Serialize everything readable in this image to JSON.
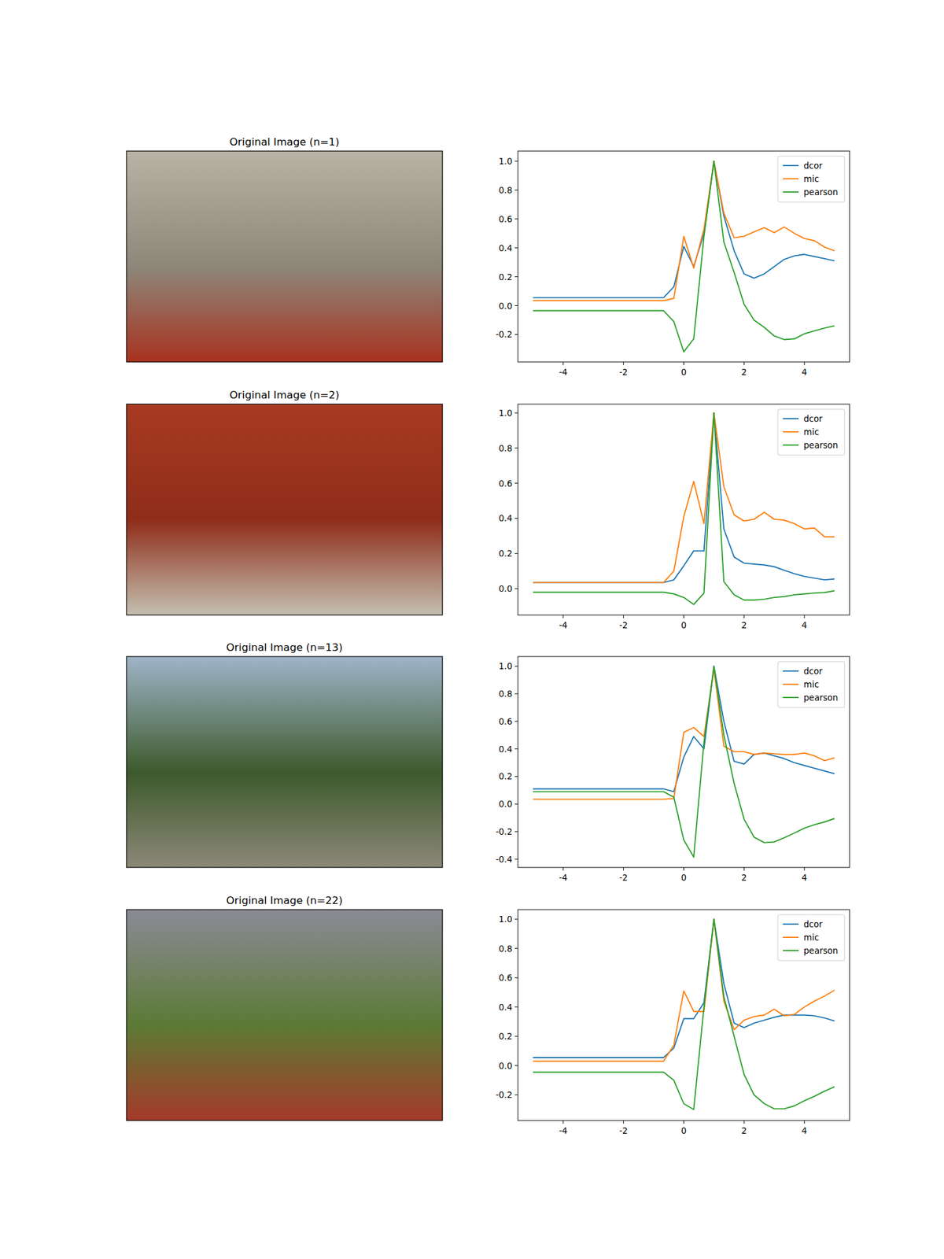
{
  "images": [
    {
      "title": "Original Image (n=1)"
    },
    {
      "title": "Original Image (n=2)"
    },
    {
      "title": "Original Image (n=13)"
    },
    {
      "title": "Original Image (n=22)"
    }
  ],
  "chart_data": [
    {
      "type": "line",
      "x": [
        -5,
        -0.67,
        -0.33,
        0,
        0.33,
        0.67,
        1,
        1.33,
        1.67,
        2,
        2.33,
        2.67,
        3,
        3.33,
        3.67,
        4,
        4.33,
        4.67,
        5
      ],
      "xlim": [
        -5.5,
        5.5
      ],
      "xticks": [
        -4,
        -2,
        0,
        2,
        4
      ],
      "ylim": [
        -0.39,
        1.07
      ],
      "yticks": [
        -0.2,
        {
          "value": 0,
          "label": "0.0"
        },
        0.2,
        0.4,
        0.6,
        0.8,
        {
          "value": 1,
          "label": "1.0"
        }
      ],
      "legend": "upper right",
      "series": [
        {
          "name": "dcor",
          "color": "#1f77b4",
          "values": [
            0.055,
            0.055,
            0.13,
            0.41,
            0.27,
            0.5,
            1.0,
            0.62,
            0.38,
            0.22,
            0.19,
            0.22,
            0.27,
            0.32,
            0.345,
            0.355,
            0.34,
            0.325,
            0.31
          ]
        },
        {
          "name": "mic",
          "color": "#ff7f0e",
          "values": [
            0.035,
            0.035,
            0.05,
            0.48,
            0.26,
            0.53,
            1.0,
            0.64,
            0.47,
            0.48,
            0.51,
            0.54,
            0.505,
            0.545,
            0.5,
            0.465,
            0.45,
            0.405,
            0.38
          ]
        },
        {
          "name": "pearson",
          "color": "#2ca02c",
          "values": [
            -0.035,
            -0.035,
            -0.11,
            -0.32,
            -0.23,
            0.48,
            1.0,
            0.44,
            0.23,
            0.01,
            -0.1,
            -0.15,
            -0.21,
            -0.235,
            -0.23,
            -0.195,
            -0.175,
            -0.155,
            -0.14
          ]
        }
      ]
    },
    {
      "type": "line",
      "x": [
        -5,
        -0.67,
        -0.33,
        0,
        0.33,
        0.67,
        1,
        1.33,
        1.67,
        2,
        2.33,
        2.67,
        3,
        3.33,
        3.67,
        4,
        4.33,
        4.67,
        5
      ],
      "xlim": [
        -5.5,
        5.5
      ],
      "xticks": [
        -4,
        -2,
        0,
        2,
        4
      ],
      "ylim": [
        -0.15,
        1.05
      ],
      "yticks": [
        {
          "value": 0,
          "label": "0.0"
        },
        0.2,
        0.4,
        0.6,
        0.8,
        {
          "value": 1,
          "label": "1.0"
        }
      ],
      "legend": "upper right",
      "series": [
        {
          "name": "dcor",
          "color": "#1f77b4",
          "values": [
            0.035,
            0.035,
            0.05,
            0.13,
            0.215,
            0.215,
            1.0,
            0.34,
            0.18,
            0.145,
            0.14,
            0.135,
            0.125,
            0.105,
            0.085,
            0.07,
            0.06,
            0.05,
            0.055
          ]
        },
        {
          "name": "mic",
          "color": "#ff7f0e",
          "values": [
            0.035,
            0.035,
            0.1,
            0.41,
            0.61,
            0.37,
            1.0,
            0.58,
            0.42,
            0.385,
            0.395,
            0.435,
            0.395,
            0.39,
            0.37,
            0.34,
            0.345,
            0.295,
            0.295
          ]
        },
        {
          "name": "pearson",
          "color": "#2ca02c",
          "values": [
            -0.02,
            -0.02,
            -0.03,
            -0.05,
            -0.09,
            -0.025,
            1.0,
            0.04,
            -0.035,
            -0.065,
            -0.065,
            -0.06,
            -0.05,
            -0.045,
            -0.035,
            -0.03,
            -0.025,
            -0.022,
            -0.012
          ]
        }
      ]
    },
    {
      "type": "line",
      "x": [
        -5,
        -0.67,
        -0.33,
        0,
        0.33,
        0.67,
        1,
        1.33,
        1.67,
        2,
        2.33,
        2.67,
        3,
        3.33,
        3.67,
        4,
        4.33,
        4.67,
        5
      ],
      "xlim": [
        -5.5,
        5.5
      ],
      "xticks": [
        -4,
        -2,
        0,
        2,
        4
      ],
      "ylim": [
        -0.46,
        1.07
      ],
      "yticks": [
        -0.4,
        -0.2,
        {
          "value": 0,
          "label": "0.0"
        },
        0.2,
        0.4,
        0.6,
        0.8,
        {
          "value": 1,
          "label": "1.0"
        }
      ],
      "legend": "upper right",
      "series": [
        {
          "name": "dcor",
          "color": "#1f77b4",
          "values": [
            0.11,
            0.11,
            0.09,
            0.34,
            0.49,
            0.4,
            1.0,
            0.6,
            0.31,
            0.29,
            0.36,
            0.37,
            0.35,
            0.33,
            0.3,
            0.28,
            0.26,
            0.24,
            0.22
          ]
        },
        {
          "name": "mic",
          "color": "#ff7f0e",
          "values": [
            0.035,
            0.035,
            0.04,
            0.52,
            0.555,
            0.49,
            0.98,
            0.42,
            0.38,
            0.38,
            0.36,
            0.37,
            0.365,
            0.36,
            0.36,
            0.37,
            0.35,
            0.315,
            0.335
          ]
        },
        {
          "name": "pearson",
          "color": "#2ca02c",
          "values": [
            0.09,
            0.09,
            0.05,
            -0.26,
            -0.385,
            0.45,
            1.0,
            0.5,
            0.15,
            -0.11,
            -0.24,
            -0.28,
            -0.275,
            -0.245,
            -0.21,
            -0.175,
            -0.15,
            -0.13,
            -0.105
          ]
        }
      ]
    },
    {
      "type": "line",
      "x": [
        -5,
        -0.67,
        -0.33,
        0,
        0.33,
        0.67,
        1,
        1.33,
        1.67,
        2,
        2.33,
        2.67,
        3,
        3.33,
        3.67,
        4,
        4.33,
        4.67,
        5
      ],
      "xlim": [
        -5.5,
        5.5
      ],
      "xticks": [
        -4,
        -2,
        0,
        2,
        4
      ],
      "ylim": [
        -0.375,
        1.065
      ],
      "yticks": [
        -0.2,
        {
          "value": 0,
          "label": "0.0"
        },
        0.2,
        0.4,
        0.6,
        0.8,
        {
          "value": 1,
          "label": "1.0"
        }
      ],
      "legend": "upper right",
      "series": [
        {
          "name": "dcor",
          "color": "#1f77b4",
          "values": [
            0.055,
            0.055,
            0.12,
            0.32,
            0.32,
            0.43,
            1.0,
            0.56,
            0.29,
            0.26,
            0.29,
            0.31,
            0.33,
            0.345,
            0.345,
            0.345,
            0.34,
            0.325,
            0.305
          ]
        },
        {
          "name": "mic",
          "color": "#ff7f0e",
          "values": [
            0.03,
            0.03,
            0.14,
            0.51,
            0.37,
            0.37,
            1.0,
            0.44,
            0.245,
            0.31,
            0.335,
            0.345,
            0.385,
            0.34,
            0.35,
            0.4,
            0.44,
            0.475,
            0.515
          ]
        },
        {
          "name": "pearson",
          "color": "#2ca02c",
          "values": [
            -0.045,
            -0.045,
            -0.1,
            -0.26,
            -0.3,
            0.4,
            1.0,
            0.47,
            0.2,
            -0.06,
            -0.2,
            -0.26,
            -0.295,
            -0.295,
            -0.275,
            -0.24,
            -0.21,
            -0.175,
            -0.145
          ]
        }
      ]
    }
  ]
}
